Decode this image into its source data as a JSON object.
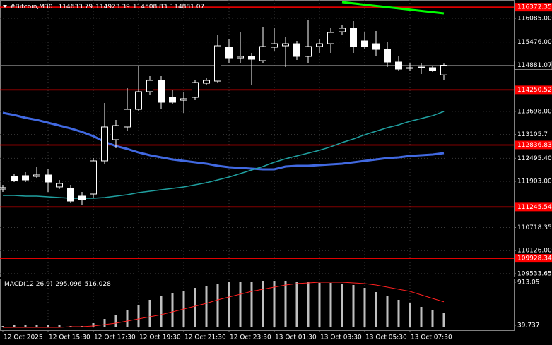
{
  "chart_data": {
    "type": "candlestick",
    "symbol": "#Bitcoin,M30",
    "categories": [
      "12 Oct 2025",
      null,
      null,
      null,
      "12 Oct 15:30",
      null,
      null,
      null,
      "12 Oct 17:30",
      null,
      null,
      null,
      "12 Oct 19:30",
      null,
      null,
      null,
      "12 Oct 21:30",
      null,
      null,
      null,
      "12 Oct 23:30",
      null,
      null,
      null,
      "13 Oct 01:30",
      null,
      null,
      null,
      "13 Oct 03:30",
      null,
      null,
      null,
      "13 Oct 05:30",
      null,
      null,
      null,
      "13 Oct 07:30",
      null,
      null,
      null
    ],
    "open": [
      111705,
      112031,
      112049,
      112031,
      112067,
      111760,
      111723,
      111524,
      111578,
      112429,
      112972,
      113298,
      113750,
      114203,
      114492,
      114058,
      113985,
      114058,
      114420,
      114474,
      115343,
      115071,
      115108,
      114999,
      115343,
      115379,
      115433,
      115108,
      115361,
      115433,
      115741,
      115832,
      115506,
      115433,
      115288,
      114963,
      114818,
      114818,
      114818,
      114633.79
    ],
    "high": [
      111814,
      112085,
      112139,
      112284,
      112212,
      111940,
      111814,
      111633,
      112502,
      113913,
      113479,
      114293,
      114872,
      114601,
      114601,
      114239,
      114203,
      114492,
      114565,
      115651,
      115560,
      115741,
      115198,
      115868,
      115832,
      115614,
      115506,
      116049,
      115560,
      115832,
      115922,
      116013,
      115741,
      115759,
      115470,
      115108,
      114927,
      114927,
      114854,
      114923.39
    ],
    "low": [
      111633,
      111886,
      111886,
      111995,
      111633,
      111705,
      111343,
      111307,
      111488,
      112357,
      112755,
      113208,
      113696,
      114112,
      113750,
      113877,
      113660,
      113985,
      114384,
      114420,
      114927,
      114927,
      114384,
      114927,
      115252,
      114836,
      115017,
      114927,
      115198,
      115198,
      115651,
      115198,
      115288,
      115108,
      114836,
      114746,
      114746,
      114655,
      114709,
      114508.83
    ],
    "close": [
      111742,
      111922,
      111940,
      112067,
      111886,
      111850,
      111397,
      111433,
      112429,
      113298,
      113334,
      113750,
      114203,
      114492,
      113931,
      113931,
      114022,
      114438,
      114492,
      115379,
      115071,
      115108,
      115035,
      115361,
      115433,
      115433,
      115108,
      115361,
      115433,
      115723,
      115832,
      115361,
      115361,
      115288,
      114963,
      114782,
      114800,
      114836,
      114746,
      114881.07
    ],
    "bull_color": "#000000",
    "bear_color": "#ffffff",
    "moving_averages": [
      {
        "color": "#4169e1",
        "values": [
          113660,
          113605,
          113533,
          113479,
          113406,
          113334,
          113261,
          113171,
          113062,
          112917,
          112809,
          112736,
          112646,
          112574,
          112519,
          112465,
          112429,
          112393,
          112357,
          112302,
          112266,
          112248,
          112230,
          112212,
          112212,
          112284,
          112302,
          112302,
          112320,
          112338,
          112357,
          112393,
          112429,
          112465,
          112502,
          112519,
          112556,
          112574,
          112592,
          112628
        ]
      },
      {
        "color": "#20a0a0",
        "values": [
          111542,
          111542,
          111524,
          111524,
          111506,
          111488,
          111470,
          111470,
          111470,
          111488,
          111524,
          111560,
          111614,
          111650,
          111687,
          111723,
          111759,
          111814,
          111868,
          111940,
          112013,
          112103,
          112193,
          112284,
          112393,
          112483,
          112556,
          112628,
          112700,
          112790,
          112899,
          112990,
          113098,
          113189,
          113279,
          113352,
          113443,
          113515,
          113587,
          113696
        ]
      }
    ],
    "trend_line": {
      "color": "#00ff00",
      "points": [
        {
          "x": 30,
          "y": 116501
        },
        {
          "x": 39,
          "y": 116212
        }
      ]
    },
    "levels": [
      116372.35,
      114250.52,
      112836.83,
      111245.54,
      109928.34
    ],
    "level_color": "#ff0000",
    "ylim": [
      109460,
      116556
    ],
    "yticks": [
      {
        "value": 116085,
        "label": "116085.00"
      },
      {
        "value": 115476,
        "label": "115476.00"
      },
      {
        "value": 113698,
        "label": "113698.00"
      },
      113105.7,
      {
        "value": 112495.4,
        "label": "112495.40"
      },
      {
        "value": 111903,
        "label": "111903.00"
      },
      110718.35,
      {
        "value": 110126,
        "label": "110126.00"
      },
      109533.65
    ],
    "grid": true,
    "macd": {
      "label": "MACD(12,26,9)",
      "histogram": [
        25.4,
        39.7,
        54.1,
        54.1,
        39.7,
        39.7,
        25.4,
        25.4,
        82.7,
        168.6,
        254.5,
        340.4,
        455.0,
        555.2,
        626.7,
        684.0,
        741.3,
        798.5,
        841.5,
        884.4,
        913.1,
        927.4,
        927.4,
        941.7,
        941.7,
        941.7,
        927.4,
        913.1,
        898.8,
        898.8,
        884.4,
        855.8,
        798.5,
        712.6,
        626.7,
        555.2,
        483.6,
        412.0,
        340.4,
        295.096
      ],
      "histogram_color": "#c0c0c0",
      "signal": [
        -3.2,
        -3.2,
        -3.2,
        -3.2,
        -3.2,
        -3.2,
        11.1,
        11.1,
        25.4,
        54.1,
        82.7,
        125.6,
        168.6,
        211.5,
        254.5,
        311.8,
        369.0,
        426.3,
        483.6,
        555.2,
        612.4,
        669.7,
        727.0,
        769.9,
        812.9,
        855.8,
        884.4,
        898.8,
        913.1,
        913.1,
        913.1,
        898.8,
        884.4,
        855.8,
        812.9,
        769.9,
        727.0,
        655.4,
        583.8,
        516.028
      ],
      "signal_color": "#ff2020",
      "ylim": [
        -60.5,
        970.3
      ],
      "yticks": [
        913.05,
        39.737
      ]
    }
  }
}
